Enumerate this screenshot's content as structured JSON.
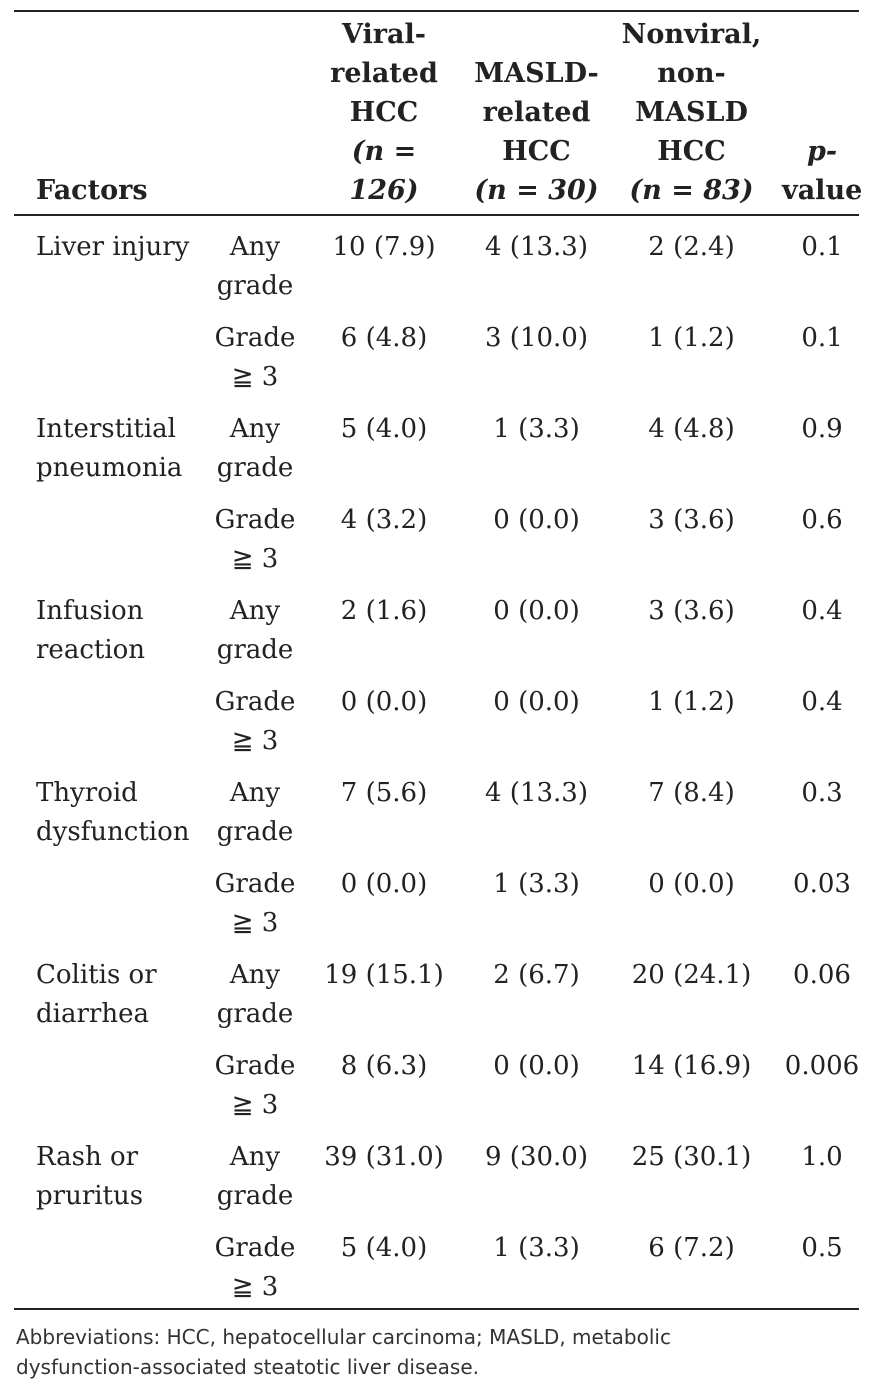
{
  "header": {
    "factors": "Factors",
    "viral": [
      "Viral-",
      "related",
      "HCC"
    ],
    "viral_n": "(n = 126)",
    "masld": [
      "MASLD-",
      "related",
      "HCC"
    ],
    "masld_n": "(n = 30)",
    "nonviral": [
      "Nonviral,",
      "non-",
      "MASLD",
      "HCC"
    ],
    "nonviral_n": "(n = 83)",
    "p": [
      "p-",
      "value"
    ]
  },
  "rows": [
    {
      "factor": [
        "Liver injury"
      ],
      "grade": [
        "Any",
        "grade"
      ],
      "viral": "10 (7.9)",
      "masld": "4 (13.3)",
      "nonviral": "2 (2.4)",
      "p": "0.1"
    },
    {
      "factor": [],
      "grade": [
        "Grade",
        "≧ 3"
      ],
      "viral": "6 (4.8)",
      "masld": "3 (10.0)",
      "nonviral": "1 (1.2)",
      "p": "0.1"
    },
    {
      "factor": [
        "Interstitial",
        "pneumonia"
      ],
      "grade": [
        "Any",
        "grade"
      ],
      "viral": "5 (4.0)",
      "masld": "1 (3.3)",
      "nonviral": "4 (4.8)",
      "p": "0.9"
    },
    {
      "factor": [],
      "grade": [
        "Grade",
        "≧ 3"
      ],
      "viral": "4 (3.2)",
      "masld": "0 (0.0)",
      "nonviral": "3 (3.6)",
      "p": "0.6"
    },
    {
      "factor": [
        "Infusion",
        "reaction"
      ],
      "grade": [
        "Any",
        "grade"
      ],
      "viral": "2 (1.6)",
      "masld": "0 (0.0)",
      "nonviral": "3 (3.6)",
      "p": "0.4"
    },
    {
      "factor": [],
      "grade": [
        "Grade",
        "≧ 3"
      ],
      "viral": "0 (0.0)",
      "masld": "0 (0.0)",
      "nonviral": "1 (1.2)",
      "p": "0.4"
    },
    {
      "factor": [
        "Thyroid",
        "dysfunction"
      ],
      "grade": [
        "Any",
        "grade"
      ],
      "viral": "7 (5.6)",
      "masld": "4 (13.3)",
      "nonviral": "7 (8.4)",
      "p": "0.3"
    },
    {
      "factor": [],
      "grade": [
        "Grade",
        "≧ 3"
      ],
      "viral": "0 (0.0)",
      "masld": "1 (3.3)",
      "nonviral": "0 (0.0)",
      "p": "0.03"
    },
    {
      "factor": [
        "Colitis or",
        "diarrhea"
      ],
      "grade": [
        "Any",
        "grade"
      ],
      "viral": "19 (15.1)",
      "masld": "2 (6.7)",
      "nonviral": "20 (24.1)",
      "p": "0.06"
    },
    {
      "factor": [],
      "grade": [
        "Grade",
        "≧ 3"
      ],
      "viral": "8 (6.3)",
      "masld": "0 (0.0)",
      "nonviral": "14 (16.9)",
      "p": "0.006"
    },
    {
      "factor": [
        "Rash or",
        "pruritus"
      ],
      "grade": [
        "Any",
        "grade"
      ],
      "viral": "39 (31.0)",
      "masld": "9 (30.0)",
      "nonviral": "25 (30.1)",
      "p": "1.0"
    },
    {
      "factor": [],
      "grade": [
        "Grade",
        "≧ 3"
      ],
      "viral": "5 (4.0)",
      "masld": "1 (3.3)",
      "nonviral": "6 (7.2)",
      "p": "0.5"
    }
  ],
  "footnote": [
    "Abbreviations: HCC, hepatocellular carcinoma; MASLD, metabolic",
    "dysfunction-associated steatotic liver disease."
  ]
}
